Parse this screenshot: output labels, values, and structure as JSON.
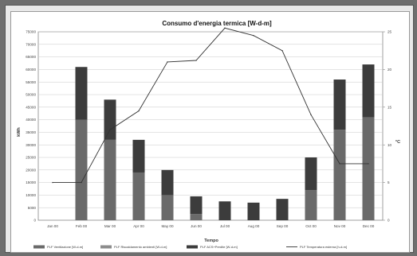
{
  "chart_data": {
    "type": "bar",
    "title": "Consumo d'energia termica [W-d-m]",
    "xlabel": "Tempo",
    "ylabel": "kWh",
    "y2label": "°C",
    "categories": [
      "Jan 00",
      "Feb 00",
      "Mar 00",
      "Apr 00",
      "May 00",
      "Jun 00",
      "Jul 00",
      "Aug 00",
      "Sep 00",
      "Oct 00",
      "Nov 00",
      "Dec 00"
    ],
    "yticks": [
      "0",
      "5000",
      "10000",
      "15000",
      "20000",
      "25000",
      "30000",
      "35000",
      "40000",
      "45000",
      "50000",
      "55000",
      "60000",
      "65000",
      "70000",
      "75000"
    ],
    "y2ticks": [
      "0",
      "5",
      "10",
      "15",
      "20",
      "25"
    ],
    "ylim": [
      0,
      75000
    ],
    "y2lim": [
      0,
      25
    ],
    "grid": true,
    "legend_position": "bottom",
    "series": [
      {
        "name": "PLF Ventilazione [W-d-m]",
        "kind": "bar",
        "color": "#6a6a6a",
        "values": [
          0,
          40000,
          32000,
          19000,
          10000,
          2500,
          0,
          0,
          0,
          12000,
          36000,
          41000
        ]
      },
      {
        "name": "PLF Riscaldamento ambienti [W-d-m]",
        "kind": "bar",
        "color": "#8c8c8c",
        "values": [
          0,
          0,
          0,
          0,
          0,
          0,
          0,
          0,
          0,
          0,
          0,
          0
        ]
      },
      {
        "name": "PLF ACS+Perdite [W-d-m]",
        "kind": "bar",
        "color": "#3c3c3c",
        "values": [
          0,
          21000,
          16000,
          13000,
          10000,
          7000,
          7500,
          7000,
          8500,
          13000,
          20000,
          21000
        ]
      },
      {
        "name": "PLF Temperatura esterna [h-d-m]",
        "kind": "line",
        "axis": "right",
        "color": "#333333",
        "values": [
          5,
          5,
          12,
          14.5,
          21,
          21.2,
          25.5,
          24.5,
          22.5,
          14,
          7.5,
          7.5
        ]
      }
    ]
  }
}
